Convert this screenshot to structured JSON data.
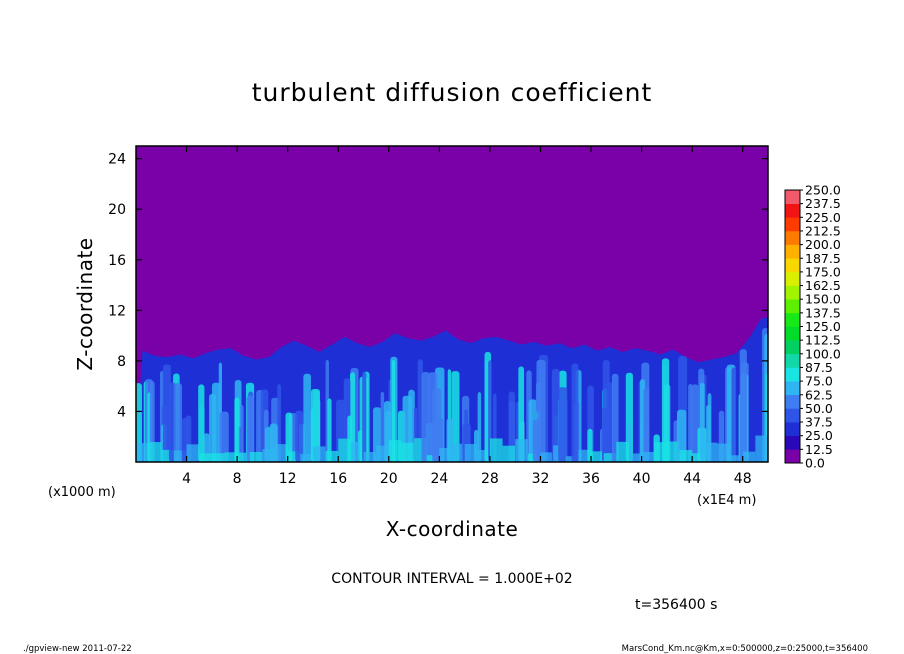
{
  "chart_data": {
    "type": "heatmap",
    "title": "turbulent diffusion coefficient",
    "xlabel": "X-coordinate",
    "ylabel": "Z-coordinate",
    "xlim": [
      0,
      50
    ],
    "ylim": [
      0,
      25
    ],
    "x_ticks": [
      "4",
      "8",
      "12",
      "16",
      "20",
      "24",
      "28",
      "32",
      "36",
      "40",
      "44",
      "48"
    ],
    "y_ticks": [
      "4",
      "8",
      "12",
      "16",
      "20",
      "24"
    ],
    "x_unit_left": "(x1000 m)",
    "x_unit_right": "(x1E4 m)",
    "colorbar": {
      "levels": [
        "0.0",
        "12.5",
        "25.0",
        "37.5",
        "50.0",
        "62.5",
        "75.0",
        "87.5",
        "100.0",
        "112.5",
        "125.0",
        "137.5",
        "150.0",
        "162.5",
        "175.0",
        "187.5",
        "200.0",
        "212.5",
        "225.0",
        "237.5",
        "250.0"
      ],
      "colors": [
        "#7a00a8",
        "#2a08b8",
        "#1f2fd6",
        "#2f55e8",
        "#3f7df2",
        "#2fb6f2",
        "#19e3e3",
        "#10d8a8",
        "#00d060",
        "#00dc28",
        "#18e818",
        "#5cf000",
        "#a0f400",
        "#d8f000",
        "#f8d800",
        "#ffb000",
        "#ff7a00",
        "#ff3c00",
        "#f01414",
        "#f05a6a"
      ]
    },
    "background_value_color": "#7a00a8",
    "turbulent_layer_top": [
      8.8,
      8.4,
      8.3,
      8.5,
      8.2,
      8.6,
      8.9,
      9.0,
      8.4,
      8.1,
      8.3,
      9.1,
      9.6,
      9.2,
      8.7,
      9.3,
      9.9,
      9.4,
      9.1,
      9.5,
      10.2,
      9.8,
      9.6,
      9.9,
      10.4,
      9.7,
      9.4,
      9.8,
      9.9,
      9.6,
      9.3,
      9.5,
      9.2,
      9.4,
      9.0,
      9.3,
      8.8,
      9.1,
      8.7,
      9.0,
      8.8,
      8.5,
      8.9,
      8.3,
      7.9,
      8.1,
      8.3,
      8.6,
      9.8,
      11.4
    ]
  },
  "info": {
    "contour_interval": "CONTOUR INTERVAL = 1.000E+02",
    "time": "t=356400 s"
  },
  "footer": {
    "left": "./gpview-new  2011-07-22",
    "right": "MarsCond_Km.nc@Km,x=0:500000,z=0:25000,t=356400"
  }
}
